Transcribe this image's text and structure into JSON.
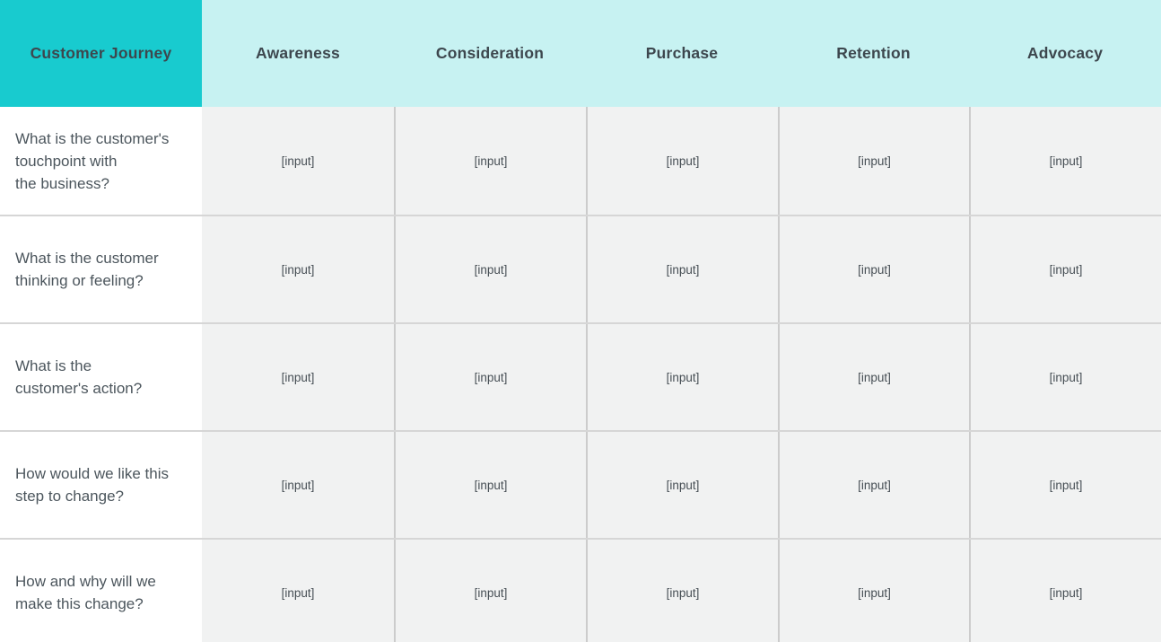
{
  "header": {
    "corner": "Customer Journey",
    "stages": [
      "Awareness",
      "Consideration",
      "Purchase",
      "Retention",
      "Advocacy"
    ]
  },
  "rows": [
    {
      "question": "What is the customer's\ntouchpoint with\nthe business?",
      "cells": [
        "[input]",
        "[input]",
        "[input]",
        "[input]",
        "[input]"
      ]
    },
    {
      "question": "What is the customer\nthinking or feeling?",
      "cells": [
        "[input]",
        "[input]",
        "[input]",
        "[input]",
        "[input]"
      ]
    },
    {
      "question": "What is the\ncustomer's action?",
      "cells": [
        "[input]",
        "[input]",
        "[input]",
        "[input]",
        "[input]"
      ]
    },
    {
      "question": "How would we like this\nstep to change?",
      "cells": [
        "[input]",
        "[input]",
        "[input]",
        "[input]",
        "[input]"
      ]
    },
    {
      "question": "How and why will we\nmake this change?",
      "cells": [
        "[input]",
        "[input]",
        "[input]",
        "[input]",
        "[input]"
      ]
    }
  ],
  "colors": {
    "teal": "#18cbcf",
    "light-cyan": "#c7f2f2",
    "cell-gray": "#f1f2f2",
    "header-text": "#3d474e",
    "body-text": "#4c565d",
    "input-text": "#474f55",
    "row-line": "#d6d6d6",
    "col-line": "#cccccc"
  }
}
